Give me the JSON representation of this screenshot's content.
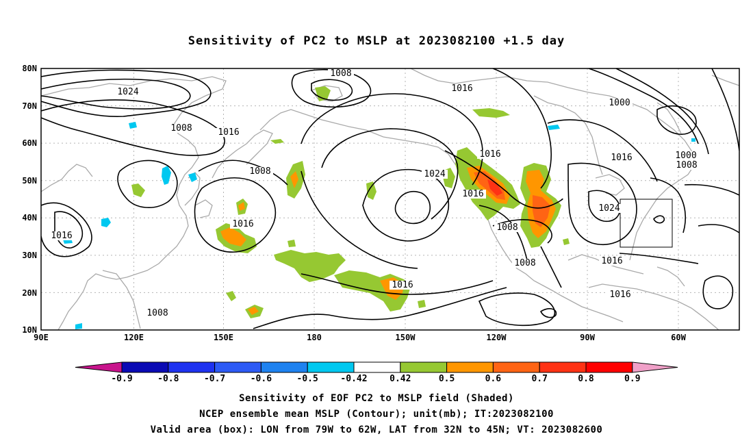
{
  "title": "Sensitivity of PC2 to MSLP at 2023082100 +1.5 day",
  "lat_labels": [
    "80N",
    "70N",
    "60N",
    "50N",
    "40N",
    "30N",
    "20N",
    "10N"
  ],
  "lon_labels": [
    "90E",
    "120E",
    "150E",
    "180",
    "150W",
    "120W",
    "90W",
    "60W"
  ],
  "contour_labels": [
    {
      "text": "1008"
    },
    {
      "text": "1016"
    },
    {
      "text": "1024"
    },
    {
      "text": "1008"
    },
    {
      "text": "1016"
    },
    {
      "text": "1008"
    },
    {
      "text": "1000"
    },
    {
      "text": "1016"
    },
    {
      "text": "1000"
    },
    {
      "text": "1008"
    },
    {
      "text": "1024"
    },
    {
      "text": "1016"
    },
    {
      "text": "1016"
    },
    {
      "text": "1024"
    },
    {
      "text": "1016"
    },
    {
      "text": "1008"
    },
    {
      "text": "1016"
    },
    {
      "text": "1008"
    },
    {
      "text": "1008"
    },
    {
      "text": "1016"
    },
    {
      "text": "1016"
    },
    {
      "text": "1016"
    }
  ],
  "colorbar": {
    "labels": [
      "-0.9",
      "-0.8",
      "-0.7",
      "-0.6",
      "-0.5",
      "-0.42",
      "0.42",
      "0.5",
      "0.6",
      "0.7",
      "0.8",
      "0.9"
    ],
    "colors": [
      "#0a0ab4",
      "#1e32f0",
      "#2d5af5",
      "#1e82f0",
      "#00c8f0",
      "#ffffff",
      "#96c832",
      "#ff9600",
      "#ff6414",
      "#ff3214",
      "#ff0000"
    ],
    "low_end_color": "#c8148c",
    "high_end_color": "#f0a0c8"
  },
  "valid_box": {
    "lon_min": -79,
    "lon_max": -62,
    "lat_min": 32,
    "lat_max": 45
  },
  "footer": [
    "Sensitivity of EOF PC2 to MSLP field (Shaded)",
    "NCEP ensemble mean MSLP (Contour); unit(mb); IT:2023082100",
    "Valid area (box): LON from 79W to 62W, LAT from 32N to 45N; VT: 2023082600"
  ]
}
